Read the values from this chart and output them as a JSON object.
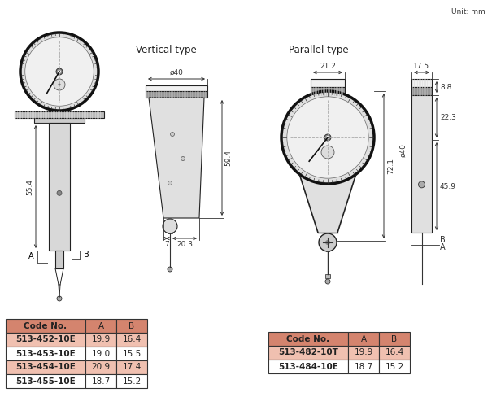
{
  "unit_text": "Unit: mm",
  "bg_color": "#ffffff",
  "table1": {
    "header": [
      "Code No.",
      "A",
      "B"
    ],
    "rows": [
      [
        "513-452-10E",
        "19.9",
        "16.4"
      ],
      [
        "513-453-10E",
        "19.0",
        "15.5"
      ],
      [
        "513-454-10E",
        "20.9",
        "17.4"
      ],
      [
        "513-455-10E",
        "18.7",
        "15.2"
      ]
    ],
    "header_color": "#d4846e",
    "row_alt_color": "#f0c0b0",
    "row_norm_color": "#ffffff"
  },
  "table2": {
    "header": [
      "Code No.",
      "A",
      "B"
    ],
    "rows": [
      [
        "513-482-10T",
        "19.9",
        "16.4"
      ],
      [
        "513-484-10E",
        "18.7",
        "15.2"
      ]
    ],
    "header_color": "#d4846e",
    "row_alt_color": "#f0c0b0",
    "row_norm_color": "#ffffff"
  },
  "label_vertical": "Vertical type",
  "label_parallel": "Parallel type",
  "dim_d40_v": "ø40",
  "dim_594": "59.4",
  "dim_554": "55.4",
  "dim_7": "7",
  "dim_203": "20.3",
  "dim_212": "21.2",
  "dim_175": "17.5",
  "dim_88": "8.8",
  "dim_721": "72.1",
  "dim_459": "45.9",
  "dim_223": "22.3",
  "dim_d40_p": "ø40",
  "label_A": "A",
  "label_B": "B"
}
